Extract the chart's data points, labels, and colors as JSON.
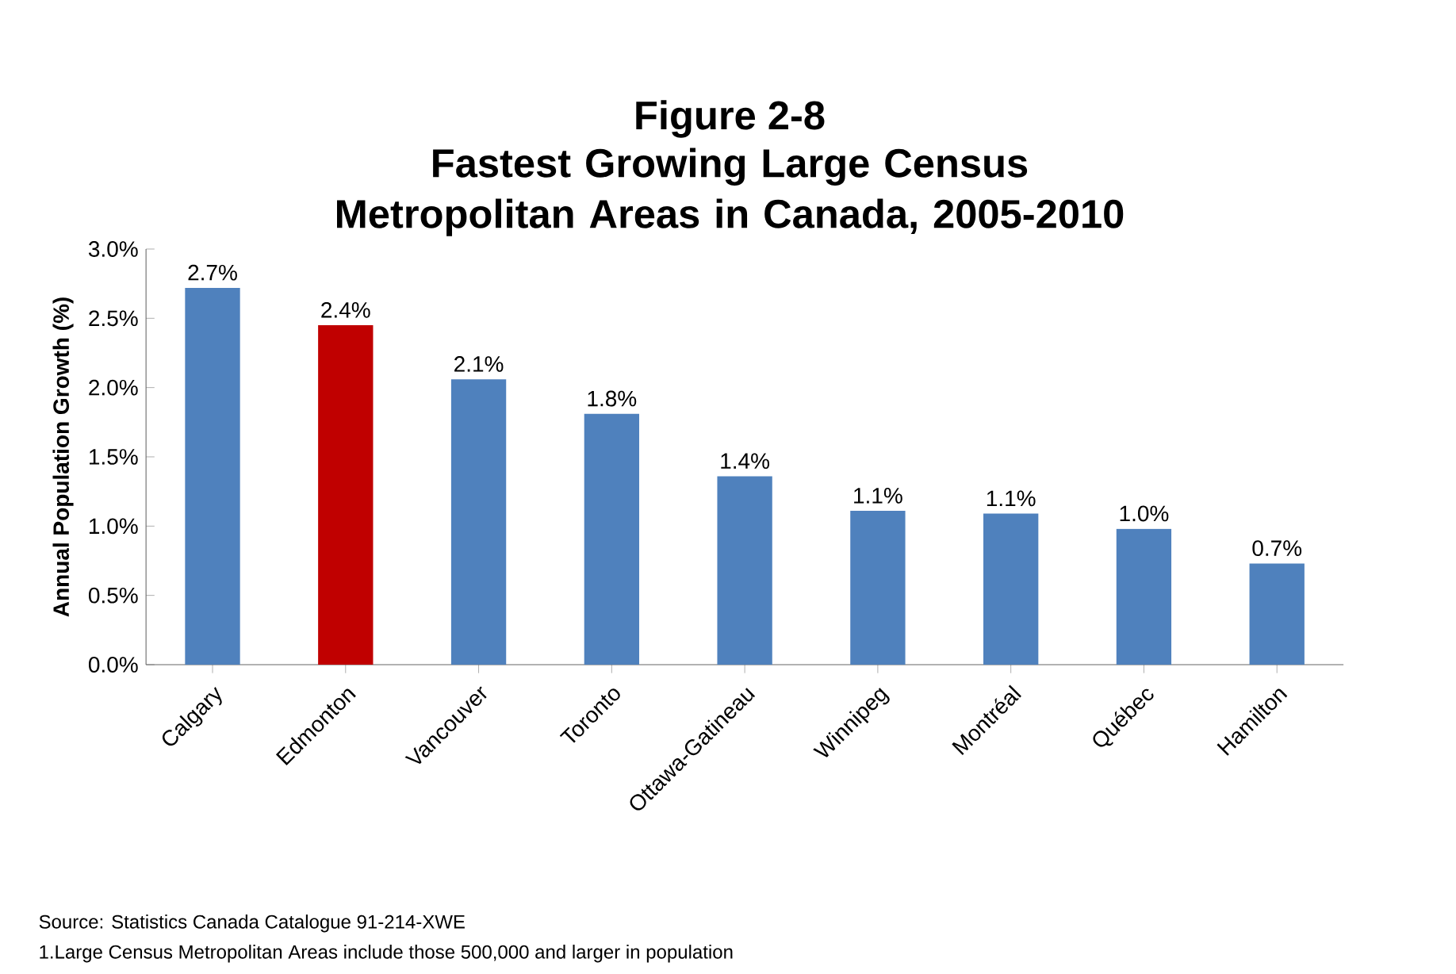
{
  "chart_data": {
    "type": "bar",
    "title": "Figure 2-8",
    "subtitle": "Fastest Growing Large Census Metropolitan Areas in Canada, 2005-2010",
    "ylabel": "Annual Population Growth  (%)",
    "categories": [
      "Calgary",
      "Edmonton",
      "Vancouver",
      "Toronto",
      "Ottawa-Gatineau",
      "Winnipeg",
      "Montréal",
      "Québec",
      "Hamilton"
    ],
    "values": [
      2.72,
      2.45,
      2.06,
      1.81,
      1.36,
      1.11,
      1.09,
      0.98,
      0.73
    ],
    "colors": [
      "#4f81bd",
      "#c00000",
      "#4f81bd",
      "#4f81bd",
      "#4f81bd",
      "#4f81bd",
      "#4f81bd",
      "#4f81bd",
      "#4f81bd"
    ],
    "value_labels": [
      "2.7%",
      "2.4%",
      "2.1%",
      "1.8%",
      "1.4%",
      "1.1%",
      "1.1%",
      "1.0%",
      "0.7%"
    ],
    "ylim": [
      0,
      3
    ],
    "yticks": [
      {
        "value": 0,
        "label": "0.0%"
      },
      {
        "value": 0.5,
        "label": "0.5%"
      },
      {
        "value": 1,
        "label": "1.0%"
      },
      {
        "value": 1.5,
        "label": "1.5%"
      },
      {
        "value": 2,
        "label": "2.0%"
      },
      {
        "value": 2.5,
        "label": "2.5%"
      },
      {
        "value": 3,
        "label": "3.0%"
      }
    ],
    "annotations": [
      "Source: Statistics Canada Catalogue 91-214-XWE",
      "1.Large Census Metropolitan Areas include those 500,000 and larger in population"
    ]
  }
}
